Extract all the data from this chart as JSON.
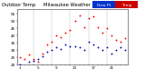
{
  "title_left": "Outdoor Temp",
  "title_right": "Milwaukee Weather",
  "legend_blue_label": "Dew Point",
  "legend_red_label": "Temp",
  "temp_color": "#ff0000",
  "dew_color": "#0000bb",
  "background_color": "#ffffff",
  "grid_color": "#999999",
  "ylim": [
    20,
    58
  ],
  "yticks": [
    20,
    25,
    30,
    35,
    40,
    45,
    50,
    55
  ],
  "ytick_labels": [
    "20",
    "25",
    "30",
    "35",
    "40",
    "45",
    "50",
    "55"
  ],
  "hours": [
    1,
    2,
    3,
    4,
    5,
    6,
    7,
    8,
    9,
    10,
    11,
    12,
    13,
    14,
    15,
    16,
    17,
    18,
    19,
    20,
    21,
    22,
    23,
    24
  ],
  "temp_values": [
    25,
    24,
    27,
    24,
    22,
    28,
    34,
    36,
    40,
    39,
    42,
    44,
    50,
    54,
    46,
    52,
    53,
    46,
    42,
    45,
    40,
    37,
    36,
    38
  ],
  "dew_values": [
    20,
    19,
    22,
    23,
    24,
    26,
    29,
    30,
    32,
    31,
    34,
    33,
    33,
    32,
    30,
    36,
    34,
    32,
    30,
    32,
    28,
    30,
    32,
    30
  ],
  "vline_positions": [
    4,
    8,
    12,
    16,
    20
  ],
  "xlabel_hours": [
    "1",
    "",
    "",
    "",
    "5",
    "",
    "",
    "",
    "9",
    "",
    "",
    "",
    "13",
    "",
    "",
    "",
    "17",
    "",
    "",
    "",
    "21",
    "",
    "",
    ""
  ],
  "tick_fontsize": 3.0,
  "dot_size": 1.8,
  "title_fontsize": 3.8,
  "legend_fontsize": 3.2
}
